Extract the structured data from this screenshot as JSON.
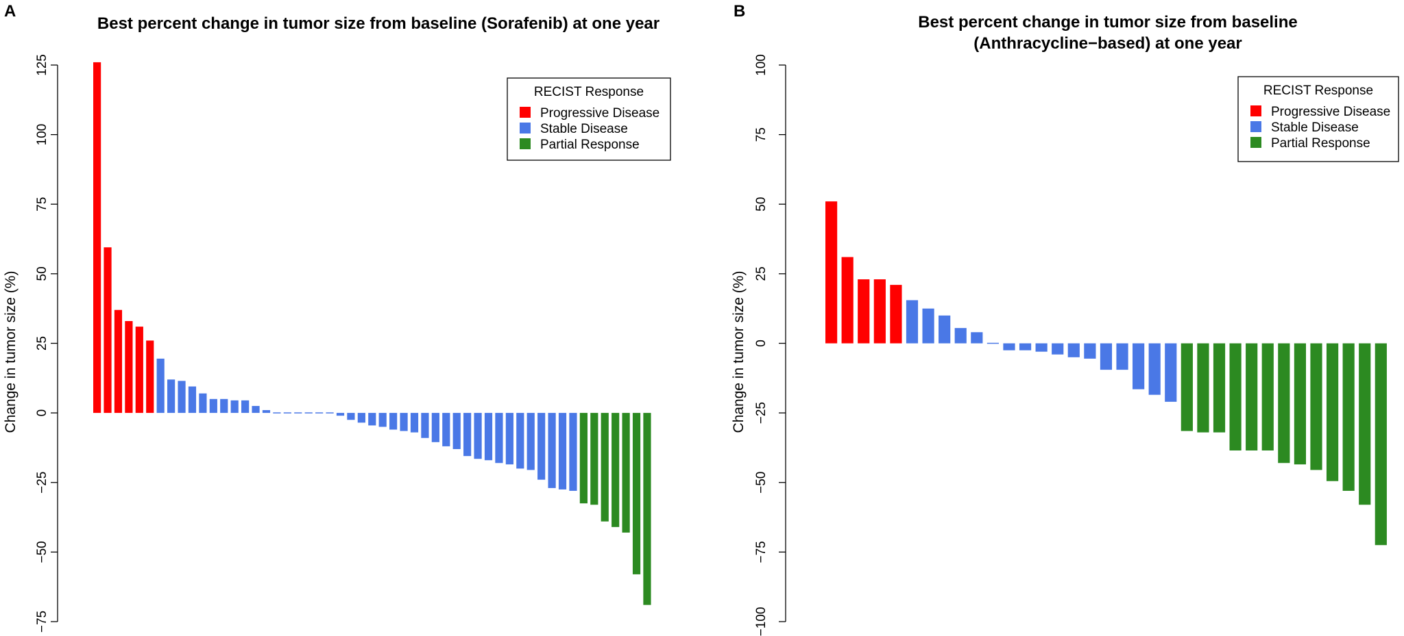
{
  "colors": {
    "progressive": "#ff0000",
    "stable": "#4a78e6",
    "partial": "#2c8a21"
  },
  "chart_data": [
    {
      "type": "bar",
      "panel_label": "A",
      "title": "Best percent change in tumor size from baseline (Sorafenib) at one year",
      "title_lines": [
        "Best percent change in tumor size from baseline (Sorafenib) at one year"
      ],
      "ylabel": "Change in tumor size (%)",
      "xlabel": "",
      "ylim": [
        -75,
        125
      ],
      "yticks": [
        -75,
        -50,
        -25,
        0,
        25,
        50,
        75,
        100,
        125
      ],
      "grid": false,
      "legend": {
        "title": "RECIST Response",
        "placement": "top-right",
        "entries": [
          {
            "label": "Progressive Disease",
            "category": "progressive"
          },
          {
            "label": "Stable Disease",
            "category": "stable"
          },
          {
            "label": "Partial Response",
            "category": "partial"
          }
        ]
      },
      "series": [
        {
          "category": "progressive",
          "values": [
            126,
            59.5,
            37,
            33,
            31,
            26
          ]
        },
        {
          "category": "stable",
          "values": [
            19.5,
            12,
            11.5,
            9.5,
            7,
            5,
            5,
            4.5,
            4.5,
            2.5,
            1,
            0.3,
            0.3,
            0.3,
            0.3,
            0.3,
            0.3,
            -1,
            -2.5,
            -3.5,
            -4.5,
            -5,
            -6,
            -6.5,
            -7,
            -9,
            -10.5,
            -12,
            -13,
            -15.5,
            -16.5,
            -17,
            -18,
            -18.5,
            -20,
            -20.5,
            -24,
            -27,
            -27.5,
            -28
          ]
        },
        {
          "category": "partial",
          "values": [
            -32.5,
            -33,
            -39,
            -41,
            -43,
            -58,
            -69
          ]
        }
      ]
    },
    {
      "type": "bar",
      "panel_label": "B",
      "title": "Best percent change in tumor size from baseline (Anthracycline−based) at one year",
      "title_lines": [
        "Best percent change in tumor size from baseline",
        "(Anthracycline−based) at one year"
      ],
      "ylabel": "Change in tumor size (%)",
      "xlabel": "",
      "ylim": [
        -100,
        100
      ],
      "yticks": [
        -100,
        -75,
        -50,
        -25,
        0,
        25,
        50,
        75,
        100
      ],
      "grid": false,
      "legend": {
        "title": "RECIST Response",
        "placement": "top-right",
        "entries": [
          {
            "label": "Progressive Disease",
            "category": "progressive"
          },
          {
            "label": "Stable Disease",
            "category": "stable"
          },
          {
            "label": "Partial Response",
            "category": "partial"
          }
        ]
      },
      "series": [
        {
          "category": "progressive",
          "values": [
            51,
            31,
            23,
            23,
            21
          ]
        },
        {
          "category": "stable",
          "values": [
            15.5,
            12.5,
            10,
            5.5,
            4,
            -0.3,
            -2.5,
            -2.5,
            -3,
            -4,
            -5,
            -5.5,
            -9.5,
            -9.5,
            -16.5,
            -18.5,
            -21
          ]
        },
        {
          "category": "partial",
          "values": [
            -31.5,
            -32,
            -32,
            -38.5,
            -38.5,
            -38.5,
            -43,
            -43.5,
            -45.5,
            -49.5,
            -53,
            -58,
            -72.5
          ]
        }
      ]
    }
  ]
}
